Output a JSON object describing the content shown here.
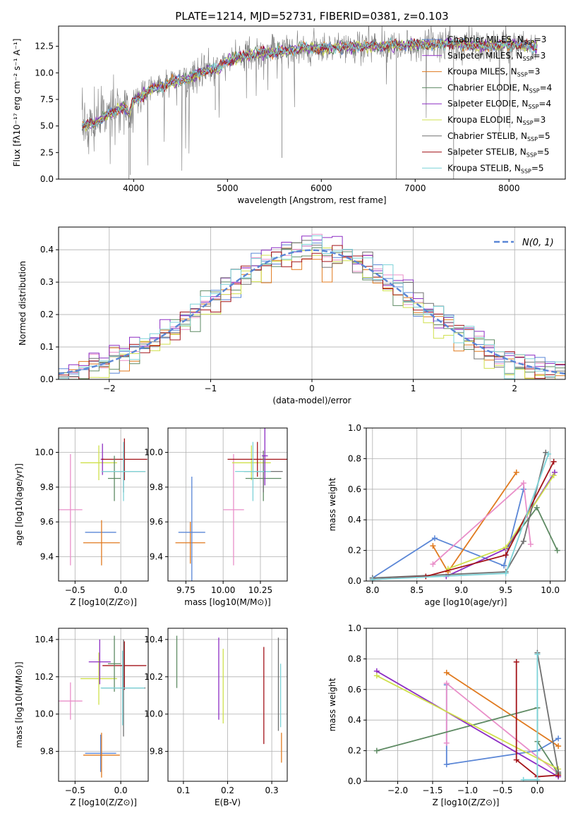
{
  "figure_title": "PLATE=1214, MJD=52731, FIBERID=0381, z=0.103",
  "colors": {
    "c1": "#5a86d6",
    "c2": "#e07a1f",
    "c3": "#e98fc9",
    "c4": "#5e8a63",
    "c5": "#8d2ec4",
    "c6": "#cfe04c",
    "c7": "#707070",
    "c8": "#a31319",
    "c9": "#7dd3d8"
  },
  "chart_data": [
    {
      "id": "spectrum",
      "type": "line",
      "title": "PLATE=1214, MJD=52731, FIBERID=0381, z=0.103",
      "xlabel": "wavelength [Angstrom, rest frame]",
      "ylabel": "Flux [fλ10⁻¹⁷ erg cm⁻² s⁻¹ A⁻¹]",
      "xlim": [
        3200,
        8600
      ],
      "ylim": [
        0,
        14.4
      ],
      "xticks": [
        4000,
        5000,
        6000,
        7000,
        8000
      ],
      "yticks": [
        0.0,
        2.5,
        5.0,
        7.5,
        10.0,
        12.5
      ],
      "legend_position": "right",
      "continuum": {
        "x": [
          3450,
          3600,
          3700,
          3800,
          3900,
          3950,
          4000,
          4100,
          4200,
          4400,
          4600,
          4800,
          4900,
          5000,
          5200,
          5400,
          5600,
          5800,
          6000,
          6200,
          6400,
          6600,
          6800,
          7000,
          7200,
          7400,
          7600,
          7800,
          8000,
          8200,
          8300
        ],
        "y": [
          5.0,
          5.3,
          5.9,
          6.4,
          6.8,
          6.0,
          7.4,
          7.9,
          8.5,
          9.1,
          9.5,
          10.4,
          10.3,
          11.2,
          11.6,
          11.9,
          12.0,
          12.3,
          12.3,
          12.4,
          12.5,
          12.5,
          12.6,
          12.7,
          12.6,
          12.8,
          12.6,
          12.5,
          12.7,
          12.5,
          12.5
        ]
      },
      "series": [
        {
          "name": "Chabrier MILES, N_SSP=3",
          "color": "#5a86d6"
        },
        {
          "name": "Salpeter MILES, N_SSP=3",
          "color": "#8d2ec4"
        },
        {
          "name": "Kroupa MILES, N_SSP=3",
          "color": "#e07a1f"
        },
        {
          "name": "Chabrier ELODIE, N_SSP=4",
          "color": "#5e8a63"
        },
        {
          "name": "Salpeter ELODIE, N_SSP=4",
          "color": "#8d2ec4"
        },
        {
          "name": "Kroupa ELODIE, N_SSP=3",
          "color": "#cfe04c"
        },
        {
          "name": "Chabrier STELIB, N_SSP=5",
          "color": "#707070"
        },
        {
          "name": "Salpeter STELIB, N_SSP=5",
          "color": "#a31319"
        },
        {
          "name": "Kroupa STELIB, N_SSP=5",
          "color": "#7dd3d8"
        }
      ]
    },
    {
      "id": "residuals",
      "type": "bar",
      "xlabel": "(data-model)/error",
      "ylabel": "Normed distribution",
      "xlim": [
        -2.5,
        2.5
      ],
      "ylim": [
        0,
        0.47
      ],
      "xticks": [
        -2,
        -1,
        0,
        1,
        2
      ],
      "yticks": [
        0.0,
        0.1,
        0.2,
        0.3,
        0.4
      ],
      "legend": "N(0, 1)",
      "legend_position": "top-right",
      "bin_width": 0.1,
      "bin_start": -2.5,
      "steps": [
        {
          "color": "#5a86d6",
          "offset": 0.006
        },
        {
          "color": "#e07a1f",
          "offset": -0.012
        },
        {
          "color": "#e98fc9",
          "offset": 0.01
        },
        {
          "color": "#5e8a63",
          "offset": -0.006
        },
        {
          "color": "#8d2ec4",
          "offset": 0.015
        },
        {
          "color": "#cfe04c",
          "offset": -0.015
        },
        {
          "color": "#707070",
          "offset": 0.003
        },
        {
          "color": "#a31319",
          "offset": -0.009
        },
        {
          "color": "#7dd3d8",
          "offset": 0.008
        }
      ]
    },
    {
      "id": "age-vs-Z",
      "type": "scatter",
      "xlabel": "Z [log10(Z/Z⊙)]",
      "ylabel": "age  [log10(age/yr)]",
      "xlim": [
        -0.68,
        0.3
      ],
      "ylim": [
        9.26,
        10.14
      ],
      "xticks": [
        -0.5,
        0.0
      ],
      "yticks": [
        9.4,
        9.6,
        9.8,
        10.0
      ],
      "points": [
        {
          "x": -0.55,
          "y": 9.67,
          "xerr": 0.13,
          "yerr": 0.32,
          "color": "#e98fc9"
        },
        {
          "x": -0.22,
          "y": 9.54,
          "xerr": 0.17,
          "yerr": 0.0,
          "color": "#5a86d6"
        },
        {
          "x": -0.21,
          "y": 9.48,
          "xerr": 0.2,
          "yerr": 0.13,
          "color": "#e07a1f"
        },
        {
          "x": -0.24,
          "y": 9.94,
          "xerr": 0.2,
          "yerr": 0.1,
          "color": "#cfe04c"
        },
        {
          "x": -0.2,
          "y": 9.96,
          "xerr": 0.02,
          "yerr": 0.09,
          "color": "#8d2ec4"
        },
        {
          "x": 0.04,
          "y": 9.96,
          "xerr": 0.25,
          "yerr": 0.12,
          "color": "#a31319"
        },
        {
          "x": -0.07,
          "y": 9.85,
          "xerr": 0.07,
          "yerr": 0.13,
          "color": "#5e8a63"
        },
        {
          "x": 0.03,
          "y": 9.89,
          "xerr": 0.24,
          "yerr": 0.12,
          "color": "#707070"
        },
        {
          "x": 0.03,
          "y": 9.89,
          "xerr": 0.24,
          "yerr": 0.17,
          "color": "#7dd3d8"
        }
      ]
    },
    {
      "id": "age-vs-mass",
      "type": "scatter",
      "xlabel": "mass [log10(M/M⊙)]",
      "xlim": [
        9.63,
        10.43
      ],
      "ylim": [
        9.26,
        10.14
      ],
      "xticks": [
        9.75,
        10.0,
        10.25
      ],
      "yticks": [
        9.4,
        9.6,
        9.8,
        10.0
      ],
      "points": [
        {
          "x": 9.78,
          "y": 9.48,
          "xerr": 0.1,
          "yerr": 0.12,
          "color": "#e07a1f"
        },
        {
          "x": 9.79,
          "y": 9.54,
          "xerr": 0.09,
          "yerr": 0.32,
          "color": "#5a86d6"
        },
        {
          "x": 10.07,
          "y": 9.67,
          "xerr": 0.07,
          "yerr": 0.32,
          "color": "#e98fc9"
        },
        {
          "x": 10.19,
          "y": 9.94,
          "xerr": 0.13,
          "yerr": 0.1,
          "color": "#cfe04c"
        },
        {
          "x": 10.23,
          "y": 9.96,
          "xerr": 0.2,
          "yerr": 0.1,
          "color": "#a31319"
        },
        {
          "x": 10.27,
          "y": 9.85,
          "xerr": 0.12,
          "yerr": 0.13,
          "color": "#5e8a63"
        },
        {
          "x": 10.27,
          "y": 9.89,
          "xerr": 0.13,
          "yerr": 0.12,
          "color": "#707070"
        },
        {
          "x": 10.2,
          "y": 9.89,
          "xerr": 0.12,
          "yerr": 0.17,
          "color": "#7dd3d8"
        },
        {
          "x": 10.28,
          "y": 9.98,
          "xerr": 0.02,
          "yerr": 0.17,
          "color": "#8d2ec4"
        }
      ]
    },
    {
      "id": "weight-vs-age",
      "type": "line",
      "xlabel": "age  [log10(age/yr)]",
      "ylabel": "mass weight",
      "xlim": [
        7.93,
        10.17
      ],
      "ylim": [
        0,
        1.0
      ],
      "xticks": [
        8.0,
        8.5,
        9.0,
        9.5,
        10.0
      ],
      "yticks": [
        0.0,
        0.2,
        0.4,
        0.6,
        0.8,
        1.0
      ],
      "series": [
        {
          "color": "#5a86d6",
          "x": [
            8.0,
            8.7,
            9.48,
            9.7
          ],
          "y": [
            0.02,
            0.28,
            0.1,
            0.6
          ]
        },
        {
          "color": "#e07a1f",
          "x": [
            8.68,
            8.85,
            9.62
          ],
          "y": [
            0.23,
            0.06,
            0.71
          ]
        },
        {
          "color": "#e98fc9",
          "x": [
            8.68,
            9.7,
            9.78
          ],
          "y": [
            0.11,
            0.64,
            0.24
          ]
        },
        {
          "color": "#5e8a63",
          "x": [
            9.5,
            9.85,
            10.08
          ],
          "y": [
            0.21,
            0.48,
            0.2
          ]
        },
        {
          "color": "#8d2ec4",
          "x": [
            8.83,
            9.5,
            10.05
          ],
          "y": [
            0.03,
            0.21,
            0.71
          ]
        },
        {
          "color": "#cfe04c",
          "x": [
            8.85,
            9.5,
            10.04
          ],
          "y": [
            0.08,
            0.22,
            0.69
          ]
        },
        {
          "color": "#707070",
          "x": [
            8.0,
            9.5,
            9.7,
            9.95
          ],
          "y": [
            0.02,
            0.06,
            0.26,
            0.84
          ]
        },
        {
          "color": "#a31319",
          "x": [
            8.0,
            8.6,
            9.5,
            10.04
          ],
          "y": [
            0.01,
            0.03,
            0.17,
            0.78
          ]
        },
        {
          "color": "#7dd3d8",
          "x": [
            8.0,
            9.5,
            9.98
          ],
          "y": [
            0.01,
            0.05,
            0.83
          ]
        }
      ]
    },
    {
      "id": "mass-vs-Z",
      "type": "scatter",
      "xlabel": "Z [log10(Z/Z⊙)]",
      "ylabel": "mass [log10(M/M⊙)]",
      "xlim": [
        -0.68,
        0.3
      ],
      "ylim": [
        9.64,
        10.46
      ],
      "xticks": [
        -0.5,
        0.0
      ],
      "yticks": [
        9.8,
        10.0,
        10.2,
        10.4
      ],
      "points": [
        {
          "x": -0.55,
          "y": 10.07,
          "xerr": 0.13,
          "yerr": 0.1,
          "color": "#e98fc9"
        },
        {
          "x": -0.22,
          "y": 9.79,
          "xerr": 0.17,
          "yerr": 0.1,
          "color": "#5a86d6"
        },
        {
          "x": -0.21,
          "y": 9.78,
          "xerr": 0.2,
          "yerr": 0.12,
          "color": "#e07a1f"
        },
        {
          "x": -0.24,
          "y": 10.19,
          "xerr": 0.2,
          "yerr": 0.14,
          "color": "#cfe04c"
        },
        {
          "x": -0.23,
          "y": 10.28,
          "xerr": 0.12,
          "yerr": 0.12,
          "color": "#8d2ec4"
        },
        {
          "x": 0.04,
          "y": 10.26,
          "xerr": 0.24,
          "yerr": 0.13,
          "color": "#a31319"
        },
        {
          "x": -0.07,
          "y": 10.27,
          "xerr": 0.07,
          "yerr": 0.15,
          "color": "#5e8a63"
        },
        {
          "x": 0.03,
          "y": 10.14,
          "xerr": 0.24,
          "yerr": 0.26,
          "color": "#707070"
        },
        {
          "x": 0.02,
          "y": 10.14,
          "xerr": 0.24,
          "yerr": 0.2,
          "color": "#7dd3d8"
        }
      ]
    },
    {
      "id": "mass-vs-ebv",
      "type": "scatter",
      "xlabel": "E(B-V)",
      "xlim": [
        0.065,
        0.335
      ],
      "ylim": [
        9.64,
        10.46
      ],
      "xticks": [
        0.1,
        0.2,
        0.3
      ],
      "yticks": [
        9.8,
        10.0,
        10.2,
        10.4
      ],
      "points": [
        {
          "x": 0.085,
          "y": 10.28,
          "yerr": 0.14,
          "color": "#5e8a63"
        },
        {
          "x": 0.18,
          "y": 10.19,
          "yerr": 0.22,
          "color": "#8d2ec4"
        },
        {
          "x": 0.19,
          "y": 10.15,
          "yerr": 0.2,
          "color": "#cfe04c"
        },
        {
          "x": 0.282,
          "y": 10.1,
          "yerr": 0.26,
          "color": "#a31319"
        },
        {
          "x": 0.315,
          "y": 10.16,
          "yerr": 0.25,
          "color": "#707070"
        },
        {
          "x": 0.32,
          "y": 10.1,
          "yerr": 0.17,
          "color": "#7dd3d8"
        },
        {
          "x": 0.322,
          "y": 9.82,
          "yerr": 0.08,
          "color": "#e07a1f"
        }
      ]
    },
    {
      "id": "weight-vs-Z",
      "type": "line",
      "xlabel": "Z [log10(Z/Z⊙)]",
      "ylabel": "mass weight",
      "xlim": [
        -2.45,
        0.4
      ],
      "ylim": [
        0,
        1.0
      ],
      "xticks": [
        -2.0,
        -1.5,
        -1.0,
        -0.5,
        0.0
      ],
      "yticks": [
        0.0,
        0.2,
        0.4,
        0.6,
        0.8,
        1.0
      ],
      "series": [
        {
          "color": "#5a86d6",
          "x": [
            -1.3,
            -1.3,
            0.0,
            0.3
          ],
          "y": [
            0.63,
            0.11,
            0.2,
            0.28
          ]
        },
        {
          "color": "#e07a1f",
          "x": [
            -1.3,
            0.3
          ],
          "y": [
            0.71,
            0.23
          ]
        },
        {
          "color": "#e98fc9",
          "x": [
            -1.3,
            -1.3,
            0.3
          ],
          "y": [
            0.25,
            0.64,
            0.05
          ]
        },
        {
          "color": "#5e8a63",
          "x": [
            -2.3,
            0.0,
            0.0,
            0.3
          ],
          "y": [
            0.2,
            0.48,
            0.26,
            0.05
          ]
        },
        {
          "color": "#8d2ec4",
          "x": [
            -2.3,
            0.3
          ],
          "y": [
            0.72,
            0.03
          ]
        },
        {
          "color": "#cfe04c",
          "x": [
            -2.3,
            0.3
          ],
          "y": [
            0.69,
            0.08
          ]
        },
        {
          "color": "#707070",
          "x": [
            0.0,
            0.3
          ],
          "y": [
            0.84,
            0.06
          ]
        },
        {
          "color": "#a31319",
          "x": [
            -0.3,
            -0.3,
            0.0,
            0.3
          ],
          "y": [
            0.78,
            0.14,
            0.03,
            0.04
          ]
        },
        {
          "color": "#7dd3d8",
          "x": [
            -0.2,
            0.0,
            0.0
          ],
          "y": [
            0.01,
            0.01,
            0.83
          ]
        }
      ]
    }
  ]
}
